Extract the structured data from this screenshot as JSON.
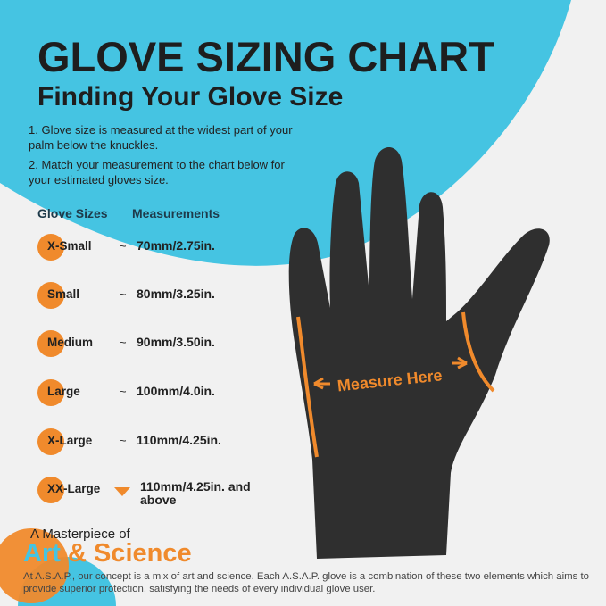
{
  "title": "GLOVE SIZING CHART",
  "subtitle": "Finding Your Glove Size",
  "steps": [
    "1. Glove size is measured at the widest part of your palm below the knuckles.",
    "2. Match your measurement to the chart below for your estimated gloves size."
  ],
  "table": {
    "headers": [
      "Glove Sizes",
      "Measurements"
    ],
    "rows": [
      {
        "size": "X-Small",
        "measurement": "70mm/2.75in."
      },
      {
        "size": "Small",
        "measurement": "80mm/3.25in."
      },
      {
        "size": "Medium",
        "measurement": "90mm/3.50in."
      },
      {
        "size": "Large",
        "measurement": "100mm/4.0in."
      },
      {
        "size": "X-Large",
        "measurement": "110mm/4.25in."
      },
      {
        "size": "XX-Large",
        "measurement": "110mm/4.25in. and above"
      }
    ],
    "approx_symbol": "~"
  },
  "hand_label": "Measure Here",
  "footer": {
    "kicker": "A Masterpiece of",
    "art": "Art",
    "amp": "&",
    "science": "Science",
    "description": "At A.S.A.P., our concept is a mix of art and science. Each A.S.A.P. glove is a combination of these two elements which aims to provide superior protection, satisfying the needs of every individual glove user."
  },
  "colors": {
    "blue": "#45c4e2",
    "orange": "#f08a2c",
    "glove": "#2f2f2f",
    "background": "#f1f1f1"
  }
}
